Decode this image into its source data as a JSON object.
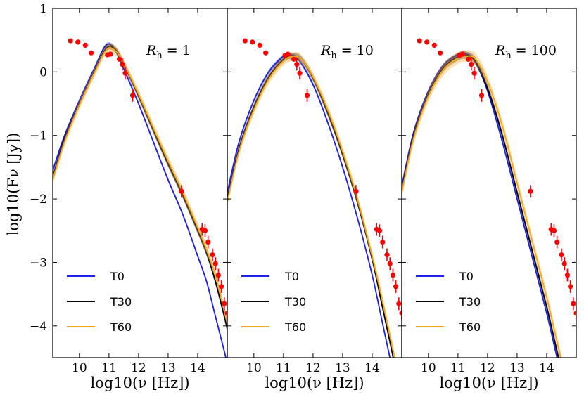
{
  "figure": {
    "ylabel": "log10(Fν [Jy])",
    "xlabel": "log10(ν [Hz])"
  },
  "chart_data": [
    {
      "type": "line",
      "panel_label": "R_h = 1",
      "xlim": [
        9.1,
        15.0
      ],
      "ylim": [
        -4.5,
        1.0
      ],
      "xticks": [
        10,
        11,
        12,
        13,
        14
      ],
      "yticks": [
        1,
        0,
        -1,
        -2,
        -3,
        -4
      ],
      "legend": {
        "placement": "bottom-left",
        "entries": [
          "T0",
          "T30",
          "T60"
        ]
      },
      "series": [
        {
          "name": "T0",
          "color": "#1f1fe6",
          "x": [
            9.1,
            9.5,
            10,
            10.5,
            10.9,
            11.2,
            11.5,
            12,
            12.5,
            13,
            13.5,
            14,
            14.3,
            14.6,
            14.9,
            15.0
          ],
          "y": [
            -1.55,
            -1.0,
            -0.45,
            0.05,
            0.42,
            0.35,
            0.05,
            -0.5,
            -1.1,
            -1.7,
            -2.25,
            -2.9,
            -3.3,
            -3.85,
            -4.4,
            -4.6
          ],
          "band": 0.03
        },
        {
          "name": "T30",
          "color": "#000000",
          "x": [
            9.1,
            9.5,
            10,
            10.5,
            10.9,
            11.2,
            11.5,
            12,
            12.5,
            13,
            13.5,
            14,
            14.3,
            14.6,
            14.9,
            15.0
          ],
          "y": [
            -1.65,
            -1.05,
            -0.5,
            0.0,
            0.37,
            0.36,
            0.12,
            -0.38,
            -0.92,
            -1.45,
            -1.95,
            -2.5,
            -2.85,
            -3.3,
            -3.85,
            -4.05
          ],
          "band": 0.05
        },
        {
          "name": "T60",
          "color": "#f5a623",
          "x": [
            9.1,
            9.5,
            10,
            10.5,
            10.9,
            11.2,
            11.5,
            12,
            12.5,
            13,
            13.5,
            14,
            14.3,
            14.6,
            14.9,
            15.0
          ],
          "y": [
            -1.7,
            -1.1,
            -0.52,
            -0.02,
            0.34,
            0.34,
            0.13,
            -0.35,
            -0.88,
            -1.4,
            -1.9,
            -2.45,
            -2.8,
            -3.2,
            -3.75,
            -3.95
          ],
          "band": 0.07
        }
      ],
      "observed": {
        "color": "#ff0000",
        "x": [
          9.7,
          9.95,
          10.2,
          10.4,
          10.95,
          11.05,
          11.35,
          11.45,
          11.55,
          11.8,
          13.45,
          14.15,
          14.25,
          14.35,
          14.5,
          14.6,
          14.7,
          14.8,
          14.9,
          15.0
        ],
        "y": [
          0.49,
          0.47,
          0.42,
          0.3,
          0.27,
          0.28,
          0.2,
          0.12,
          -0.02,
          -0.37,
          -1.88,
          -2.48,
          -2.5,
          -2.68,
          -2.88,
          -3.02,
          -3.2,
          -3.38,
          -3.65,
          -3.8
        ]
      }
    },
    {
      "type": "line",
      "panel_label": "R_h = 10",
      "xlim": [
        9.1,
        15.0
      ],
      "ylim": [
        -4.5,
        1.0
      ],
      "xticks": [
        10,
        11,
        12,
        13,
        14
      ],
      "yticks": [
        1,
        0,
        -1,
        -2,
        -3,
        -4
      ],
      "legend": {
        "placement": "bottom-left",
        "entries": [
          "T0",
          "T30",
          "T60"
        ]
      },
      "series": [
        {
          "name": "T0",
          "color": "#1f1fe6",
          "x": [
            9.1,
            9.5,
            10,
            10.5,
            11.0,
            11.2,
            11.5,
            12,
            12.5,
            13,
            13.5,
            14,
            14.3,
            14.6,
            14.75
          ],
          "y": [
            -1.9,
            -1.1,
            -0.45,
            0.0,
            0.25,
            0.27,
            0.2,
            -0.2,
            -0.8,
            -1.5,
            -2.3,
            -3.2,
            -3.85,
            -4.5,
            -4.8
          ],
          "band": 0.03
        },
        {
          "name": "T30",
          "color": "#000000",
          "x": [
            9.1,
            9.5,
            10,
            10.5,
            11.0,
            11.3,
            11.6,
            12,
            12.5,
            13,
            13.5,
            14,
            14.3,
            14.6,
            14.8
          ],
          "y": [
            -2.0,
            -1.2,
            -0.55,
            -0.08,
            0.2,
            0.25,
            0.2,
            -0.1,
            -0.65,
            -1.3,
            -2.05,
            -2.95,
            -3.6,
            -4.25,
            -4.7
          ],
          "band": 0.05
        },
        {
          "name": "T60",
          "color": "#f5a623",
          "x": [
            9.1,
            9.5,
            10,
            10.5,
            11.0,
            11.3,
            11.6,
            12,
            12.5,
            13,
            13.5,
            14,
            14.3,
            14.6,
            14.85
          ],
          "y": [
            -2.05,
            -1.25,
            -0.6,
            -0.12,
            0.17,
            0.24,
            0.2,
            -0.08,
            -0.6,
            -1.25,
            -2.0,
            -2.9,
            -3.5,
            -4.15,
            -4.7
          ],
          "band": 0.07
        }
      ],
      "observed": {
        "color": "#ff0000",
        "x": [
          9.7,
          9.95,
          10.2,
          10.4,
          11.05,
          11.15,
          11.35,
          11.45,
          11.55,
          11.8,
          13.45,
          14.15,
          14.25,
          14.35,
          14.5,
          14.6,
          14.7,
          14.8,
          14.9,
          15.0
        ],
        "y": [
          0.49,
          0.47,
          0.42,
          0.3,
          0.26,
          0.28,
          0.2,
          0.12,
          -0.02,
          -0.37,
          -1.88,
          -2.48,
          -2.5,
          -2.68,
          -2.88,
          -3.02,
          -3.2,
          -3.38,
          -3.65,
          -3.8
        ]
      }
    },
    {
      "type": "line",
      "panel_label": "R_h = 100",
      "xlim": [
        9.1,
        15.0
      ],
      "ylim": [
        -4.5,
        1.0
      ],
      "xticks": [
        10,
        11,
        12,
        13,
        14
      ],
      "yticks": [
        1,
        0,
        -1,
        -2,
        -3,
        -4
      ],
      "legend": {
        "placement": "bottom-left",
        "entries": [
          "T0",
          "T30",
          "T60"
        ]
      },
      "series": [
        {
          "name": "T0",
          "color": "#1f1fe6",
          "x": [
            9.1,
            9.5,
            10,
            10.5,
            11.0,
            11.3,
            11.6,
            12,
            12.5,
            13,
            13.5,
            14,
            14.3,
            14.5
          ],
          "y": [
            -1.8,
            -0.95,
            -0.3,
            0.1,
            0.27,
            0.28,
            0.15,
            -0.3,
            -1.1,
            -2.0,
            -2.9,
            -3.8,
            -4.4,
            -4.8
          ],
          "band": 0.03
        },
        {
          "name": "T30",
          "color": "#000000",
          "x": [
            9.1,
            9.5,
            10,
            10.5,
            11.0,
            11.3,
            11.6,
            12,
            12.5,
            13,
            13.5,
            14,
            14.3,
            14.55
          ],
          "y": [
            -1.85,
            -1.0,
            -0.35,
            0.06,
            0.24,
            0.26,
            0.16,
            -0.25,
            -1.0,
            -1.9,
            -2.8,
            -3.7,
            -4.3,
            -4.8
          ],
          "band": 0.06
        },
        {
          "name": "T60",
          "color": "#f5a623",
          "x": [
            9.1,
            9.5,
            10,
            10.5,
            11.0,
            11.3,
            11.6,
            12,
            12.5,
            13,
            13.5,
            14,
            14.3,
            14.6
          ],
          "y": [
            -1.9,
            -1.05,
            -0.38,
            0.03,
            0.22,
            0.25,
            0.2,
            -0.15,
            -0.85,
            -1.75,
            -2.65,
            -3.55,
            -4.15,
            -4.75
          ],
          "band": 0.09
        }
      ],
      "observed": {
        "color": "#ff0000",
        "x": [
          9.7,
          9.95,
          10.2,
          10.4,
          11.05,
          11.15,
          11.35,
          11.45,
          11.55,
          11.8,
          13.45,
          14.15,
          14.25,
          14.35,
          14.5,
          14.6,
          14.7,
          14.8,
          14.9,
          15.0
        ],
        "y": [
          0.49,
          0.47,
          0.42,
          0.3,
          0.26,
          0.28,
          0.2,
          0.12,
          -0.02,
          -0.37,
          -1.88,
          -2.48,
          -2.5,
          -2.68,
          -2.88,
          -3.02,
          -3.2,
          -3.38,
          -3.65,
          -3.8
        ]
      }
    }
  ]
}
